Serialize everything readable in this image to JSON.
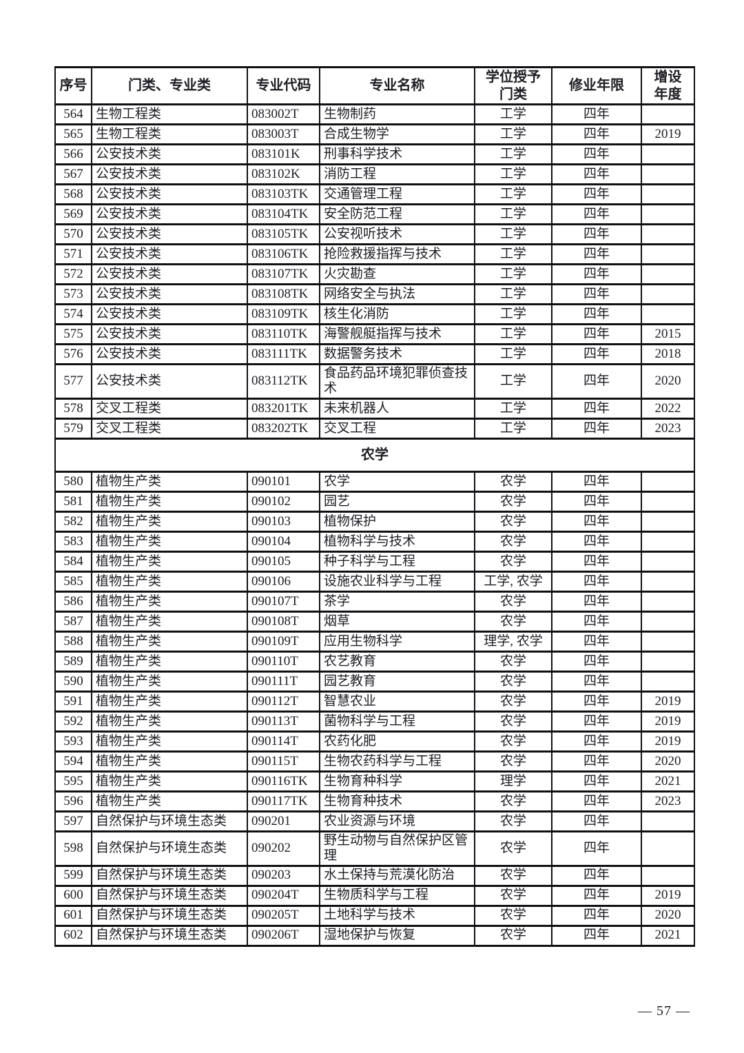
{
  "page": {
    "number_label": "— 57 —"
  },
  "table": {
    "columns": [
      {
        "key": "no",
        "label": "序号"
      },
      {
        "key": "category",
        "label": "门类、专业类"
      },
      {
        "key": "code",
        "label": "专业代码"
      },
      {
        "key": "name",
        "label": "专业名称"
      },
      {
        "key": "degree",
        "label": "学位授予\n门类"
      },
      {
        "key": "years",
        "label": "修业年限"
      },
      {
        "key": "added",
        "label": "增设\n年度"
      }
    ],
    "items": [
      {
        "type": "major",
        "no": "564",
        "category": "生物工程类",
        "code": "083002T",
        "name": "生物制药",
        "degree": "工学",
        "years": "四年",
        "added": ""
      },
      {
        "type": "major",
        "no": "565",
        "category": "生物工程类",
        "code": "083003T",
        "name": "合成生物学",
        "degree": "工学",
        "years": "四年",
        "added": "2019"
      },
      {
        "type": "major",
        "no": "566",
        "category": "公安技术类",
        "code": "083101K",
        "name": "刑事科学技术",
        "degree": "工学",
        "years": "四年",
        "added": ""
      },
      {
        "type": "major",
        "no": "567",
        "category": "公安技术类",
        "code": "083102K",
        "name": "消防工程",
        "degree": "工学",
        "years": "四年",
        "added": ""
      },
      {
        "type": "major",
        "no": "568",
        "category": "公安技术类",
        "code": "083103TK",
        "name": "交通管理工程",
        "degree": "工学",
        "years": "四年",
        "added": ""
      },
      {
        "type": "major",
        "no": "569",
        "category": "公安技术类",
        "code": "083104TK",
        "name": "安全防范工程",
        "degree": "工学",
        "years": "四年",
        "added": ""
      },
      {
        "type": "major",
        "no": "570",
        "category": "公安技术类",
        "code": "083105TK",
        "name": "公安视听技术",
        "degree": "工学",
        "years": "四年",
        "added": ""
      },
      {
        "type": "major",
        "no": "571",
        "category": "公安技术类",
        "code": "083106TK",
        "name": "抢险救援指挥与技术",
        "degree": "工学",
        "years": "四年",
        "added": ""
      },
      {
        "type": "major",
        "no": "572",
        "category": "公安技术类",
        "code": "083107TK",
        "name": "火灾勘查",
        "degree": "工学",
        "years": "四年",
        "added": ""
      },
      {
        "type": "major",
        "no": "573",
        "category": "公安技术类",
        "code": "083108TK",
        "name": "网络安全与执法",
        "degree": "工学",
        "years": "四年",
        "added": ""
      },
      {
        "type": "major",
        "no": "574",
        "category": "公安技术类",
        "code": "083109TK",
        "name": "核生化消防",
        "degree": "工学",
        "years": "四年",
        "added": ""
      },
      {
        "type": "major",
        "no": "575",
        "category": "公安技术类",
        "code": "083110TK",
        "name": "海警舰艇指挥与技术",
        "degree": "工学",
        "years": "四年",
        "added": "2015"
      },
      {
        "type": "major",
        "no": "576",
        "category": "公安技术类",
        "code": "083111TK",
        "name": "数据警务技术",
        "degree": "工学",
        "years": "四年",
        "added": "2018"
      },
      {
        "type": "major",
        "no": "577",
        "category": "公安技术类",
        "code": "083112TK",
        "name": "食品药品环境犯罪侦查技术",
        "degree": "工学",
        "years": "四年",
        "added": "2020"
      },
      {
        "type": "major",
        "no": "578",
        "category": "交叉工程类",
        "code": "083201TK",
        "name": "未来机器人",
        "degree": "工学",
        "years": "四年",
        "added": "2022"
      },
      {
        "type": "major",
        "no": "579",
        "category": "交叉工程类",
        "code": "083202TK",
        "name": "交叉工程",
        "degree": "工学",
        "years": "四年",
        "added": "2023"
      },
      {
        "type": "section",
        "label": "农学"
      },
      {
        "type": "major",
        "no": "580",
        "category": "植物生产类",
        "code": "090101",
        "name": "农学",
        "degree": "农学",
        "years": "四年",
        "added": ""
      },
      {
        "type": "major",
        "no": "581",
        "category": "植物生产类",
        "code": "090102",
        "name": "园艺",
        "degree": "农学",
        "years": "四年",
        "added": ""
      },
      {
        "type": "major",
        "no": "582",
        "category": "植物生产类",
        "code": "090103",
        "name": "植物保护",
        "degree": "农学",
        "years": "四年",
        "added": ""
      },
      {
        "type": "major",
        "no": "583",
        "category": "植物生产类",
        "code": "090104",
        "name": "植物科学与技术",
        "degree": "农学",
        "years": "四年",
        "added": ""
      },
      {
        "type": "major",
        "no": "584",
        "category": "植物生产类",
        "code": "090105",
        "name": "种子科学与工程",
        "degree": "农学",
        "years": "四年",
        "added": ""
      },
      {
        "type": "major",
        "no": "585",
        "category": "植物生产类",
        "code": "090106",
        "name": "设施农业科学与工程",
        "degree": "工学, 农学",
        "years": "四年",
        "added": ""
      },
      {
        "type": "major",
        "no": "586",
        "category": "植物生产类",
        "code": "090107T",
        "name": "茶学",
        "degree": "农学",
        "years": "四年",
        "added": ""
      },
      {
        "type": "major",
        "no": "587",
        "category": "植物生产类",
        "code": "090108T",
        "name": "烟草",
        "degree": "农学",
        "years": "四年",
        "added": ""
      },
      {
        "type": "major",
        "no": "588",
        "category": "植物生产类",
        "code": "090109T",
        "name": "应用生物科学",
        "degree": "理学, 农学",
        "years": "四年",
        "added": ""
      },
      {
        "type": "major",
        "no": "589",
        "category": "植物生产类",
        "code": "090110T",
        "name": "农艺教育",
        "degree": "农学",
        "years": "四年",
        "added": ""
      },
      {
        "type": "major",
        "no": "590",
        "category": "植物生产类",
        "code": "090111T",
        "name": "园艺教育",
        "degree": "农学",
        "years": "四年",
        "added": ""
      },
      {
        "type": "major",
        "no": "591",
        "category": "植物生产类",
        "code": "090112T",
        "name": "智慧农业",
        "degree": "农学",
        "years": "四年",
        "added": "2019"
      },
      {
        "type": "major",
        "no": "592",
        "category": "植物生产类",
        "code": "090113T",
        "name": "菌物科学与工程",
        "degree": "农学",
        "years": "四年",
        "added": "2019"
      },
      {
        "type": "major",
        "no": "593",
        "category": "植物生产类",
        "code": "090114T",
        "name": "农药化肥",
        "degree": "农学",
        "years": "四年",
        "added": "2019"
      },
      {
        "type": "major",
        "no": "594",
        "category": "植物生产类",
        "code": "090115T",
        "name": "生物农药科学与工程",
        "degree": "农学",
        "years": "四年",
        "added": "2020"
      },
      {
        "type": "major",
        "no": "595",
        "category": "植物生产类",
        "code": "090116TK",
        "name": "生物育种科学",
        "degree": "理学",
        "years": "四年",
        "added": "2021"
      },
      {
        "type": "major",
        "no": "596",
        "category": "植物生产类",
        "code": "090117TK",
        "name": "生物育种技术",
        "degree": "农学",
        "years": "四年",
        "added": "2023"
      },
      {
        "type": "major",
        "no": "597",
        "category": "自然保护与环境生态类",
        "code": "090201",
        "name": "农业资源与环境",
        "degree": "农学",
        "years": "四年",
        "added": ""
      },
      {
        "type": "major",
        "no": "598",
        "category": "自然保护与环境生态类",
        "code": "090202",
        "name": "野生动物与自然保护区管理",
        "degree": "农学",
        "years": "四年",
        "added": ""
      },
      {
        "type": "major",
        "no": "599",
        "category": "自然保护与环境生态类",
        "code": "090203",
        "name": "水土保持与荒漠化防治",
        "degree": "农学",
        "years": "四年",
        "added": ""
      },
      {
        "type": "major",
        "no": "600",
        "category": "自然保护与环境生态类",
        "code": "090204T",
        "name": "生物质科学与工程",
        "degree": "农学",
        "years": "四年",
        "added": "2019"
      },
      {
        "type": "major",
        "no": "601",
        "category": "自然保护与环境生态类",
        "code": "090205T",
        "name": "土地科学与技术",
        "degree": "农学",
        "years": "四年",
        "added": "2020"
      },
      {
        "type": "major",
        "no": "602",
        "category": "自然保护与环境生态类",
        "code": "090206T",
        "name": "湿地保护与恢复",
        "degree": "农学",
        "years": "四年",
        "added": "2021"
      }
    ]
  }
}
